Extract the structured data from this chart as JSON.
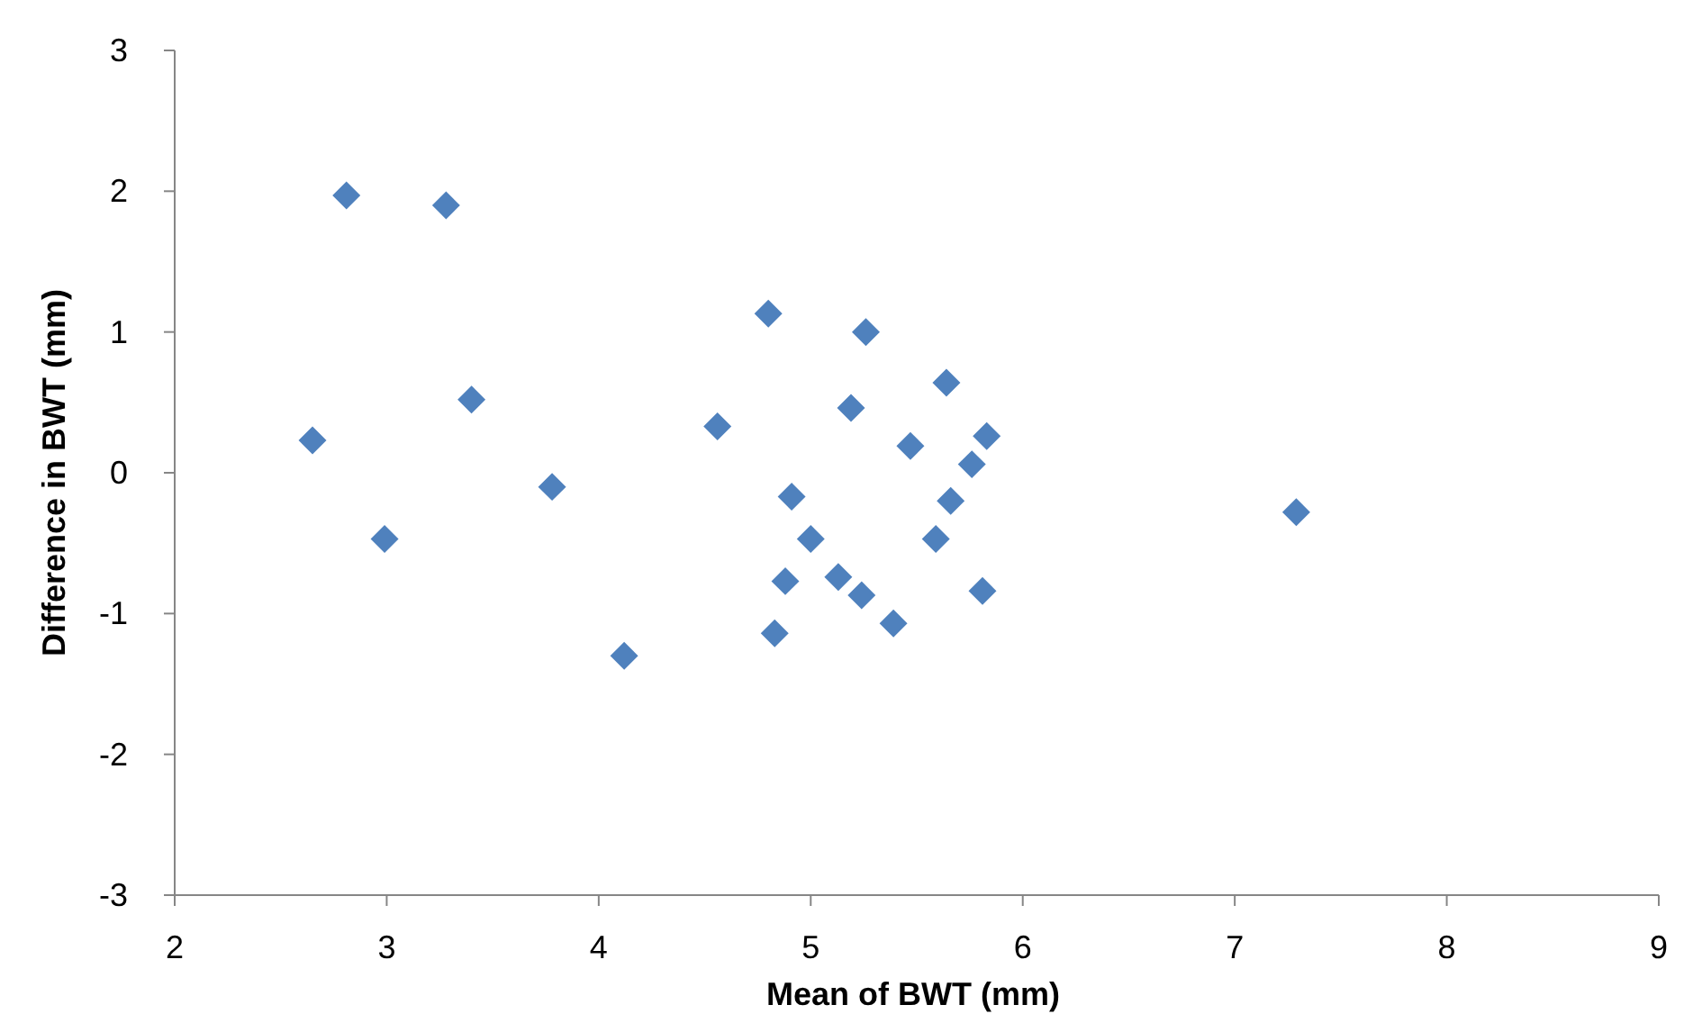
{
  "chart_data": {
    "type": "scatter",
    "xlabel": "Mean of BWT (mm)",
    "ylabel": "Difference in BWT (mm)",
    "x": [
      2.65,
      2.81,
      2.99,
      3.28,
      3.4,
      3.78,
      4.12,
      4.56,
      4.8,
      4.83,
      4.88,
      4.91,
      5.0,
      5.13,
      5.19,
      5.24,
      5.26,
      5.39,
      5.47,
      5.59,
      5.64,
      5.66,
      5.76,
      5.81,
      5.83,
      7.29
    ],
    "series": [
      {
        "color": "#4f81bd",
        "values": [
          0.23,
          1.97,
          -0.47,
          1.9,
          0.52,
          -0.1,
          -1.3,
          0.33,
          1.13,
          -1.14,
          -0.77,
          -0.17,
          -0.47,
          -0.74,
          0.46,
          -0.87,
          1.0,
          -1.07,
          0.19,
          -0.47,
          0.64,
          -0.2,
          0.06,
          -0.84,
          0.26,
          -0.28
        ]
      }
    ],
    "xlim": [
      2,
      9
    ],
    "xticks": [
      2,
      3,
      4,
      5,
      6,
      7,
      8,
      9
    ],
    "ylim": [
      -3,
      3
    ],
    "yticks": [
      -3,
      -2,
      -1,
      0,
      1,
      2,
      3
    ],
    "marker": "diamond",
    "grid": false
  }
}
